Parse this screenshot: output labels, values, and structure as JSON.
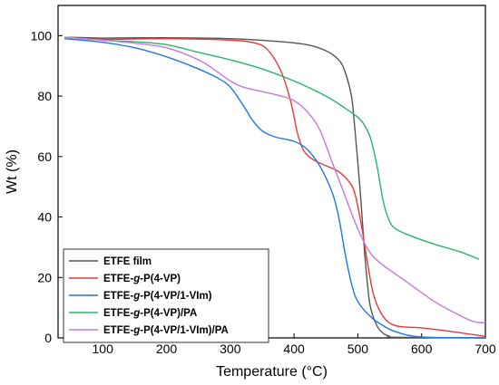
{
  "chart_data": {
    "type": "line",
    "title": "",
    "xlabel": "Temperature (°C)",
    "ylabel": "Wt (%)",
    "xlim": [
      30,
      700
    ],
    "ylim": [
      0,
      110
    ],
    "xticks": [
      100,
      200,
      300,
      400,
      500,
      600,
      700
    ],
    "yticks": [
      0,
      20,
      40,
      60,
      80,
      100
    ],
    "grid": false,
    "legend_position": "bottom-left",
    "series": [
      {
        "name": "ETFE film",
        "legend_parts": [
          {
            "text": "ETFE film",
            "italic": false
          }
        ],
        "color": "#555555",
        "points": [
          [
            40,
            99.5
          ],
          [
            100,
            99.2
          ],
          [
            200,
            99.3
          ],
          [
            300,
            99
          ],
          [
            380,
            98
          ],
          [
            420,
            97
          ],
          [
            450,
            95
          ],
          [
            470,
            92
          ],
          [
            480,
            88
          ],
          [
            490,
            80
          ],
          [
            495,
            70
          ],
          [
            500,
            58
          ],
          [
            505,
            45
          ],
          [
            510,
            30
          ],
          [
            515,
            18
          ],
          [
            520,
            10
          ],
          [
            530,
            4
          ],
          [
            540,
            1.5
          ],
          [
            550,
            0.5
          ],
          [
            560,
            0.2
          ],
          [
            700,
            0
          ]
        ]
      },
      {
        "name": "ETFE-g-P(4-VP)",
        "legend_parts": [
          {
            "text": "ETFE-",
            "italic": false
          },
          {
            "text": "g",
            "italic": true
          },
          {
            "text": "-P(4-VP)",
            "italic": false
          }
        ],
        "color": "#e8383d",
        "points": [
          [
            40,
            99.5
          ],
          [
            100,
            98.8
          ],
          [
            200,
            99
          ],
          [
            300,
            98.5
          ],
          [
            340,
            97.5
          ],
          [
            360,
            95
          ],
          [
            380,
            88
          ],
          [
            395,
            78
          ],
          [
            405,
            68
          ],
          [
            415,
            62
          ],
          [
            430,
            59
          ],
          [
            450,
            57
          ],
          [
            470,
            55
          ],
          [
            485,
            52
          ],
          [
            495,
            48
          ],
          [
            505,
            38
          ],
          [
            515,
            25
          ],
          [
            525,
            14
          ],
          [
            540,
            7
          ],
          [
            560,
            4
          ],
          [
            600,
            3.3
          ],
          [
            650,
            2
          ],
          [
            700,
            0.5
          ]
        ]
      },
      {
        "name": "ETFE-g-P(4-VP/1-VIm)",
        "legend_parts": [
          {
            "text": "ETFE-",
            "italic": false
          },
          {
            "text": "g",
            "italic": true
          },
          {
            "text": "-P(4-VP/1-VIm)",
            "italic": false
          }
        ],
        "color": "#1f77e0",
        "points": [
          [
            40,
            99
          ],
          [
            100,
            97.8
          ],
          [
            150,
            96
          ],
          [
            200,
            93
          ],
          [
            250,
            89
          ],
          [
            280,
            86
          ],
          [
            300,
            83
          ],
          [
            320,
            77
          ],
          [
            335,
            72
          ],
          [
            350,
            68.5
          ],
          [
            370,
            66.5
          ],
          [
            400,
            65
          ],
          [
            420,
            62.5
          ],
          [
            440,
            57
          ],
          [
            460,
            48
          ],
          [
            470,
            40
          ],
          [
            480,
            28
          ],
          [
            490,
            18
          ],
          [
            500,
            12
          ],
          [
            520,
            7
          ],
          [
            540,
            4
          ],
          [
            560,
            2
          ],
          [
            600,
            0.3
          ],
          [
            700,
            0
          ]
        ]
      },
      {
        "name": "ETFE-g-P(4-VP)/PA",
        "legend_parts": [
          {
            "text": "ETFE-",
            "italic": false
          },
          {
            "text": "g",
            "italic": true
          },
          {
            "text": "-P(4-VP)/PA",
            "italic": false
          }
        ],
        "color": "#27b36a",
        "points": [
          [
            40,
            99.5
          ],
          [
            100,
            98.5
          ],
          [
            150,
            98
          ],
          [
            200,
            97
          ],
          [
            250,
            94.5
          ],
          [
            300,
            92
          ],
          [
            350,
            89
          ],
          [
            400,
            85
          ],
          [
            450,
            80
          ],
          [
            480,
            76
          ],
          [
            500,
            73
          ],
          [
            510,
            70.5
          ],
          [
            520,
            66
          ],
          [
            530,
            57
          ],
          [
            540,
            45
          ],
          [
            550,
            38.5
          ],
          [
            560,
            36
          ],
          [
            580,
            34
          ],
          [
            620,
            31
          ],
          [
            660,
            28.5
          ],
          [
            690,
            26
          ]
        ]
      },
      {
        "name": "ETFE-g-P(4-VP/1-VIm)/PA",
        "legend_parts": [
          {
            "text": "ETFE-",
            "italic": false
          },
          {
            "text": "g",
            "italic": true
          },
          {
            "text": "-P(4-VP/1-VIm)/PA",
            "italic": false
          }
        ],
        "color": "#c678dd",
        "points": [
          [
            40,
            99.5
          ],
          [
            100,
            98.5
          ],
          [
            150,
            97.5
          ],
          [
            200,
            96
          ],
          [
            250,
            92
          ],
          [
            280,
            88
          ],
          [
            300,
            85
          ],
          [
            320,
            83
          ],
          [
            350,
            81.5
          ],
          [
            380,
            80
          ],
          [
            400,
            78.5
          ],
          [
            420,
            75
          ],
          [
            440,
            69
          ],
          [
            460,
            58
          ],
          [
            480,
            47
          ],
          [
            500,
            36
          ],
          [
            520,
            28
          ],
          [
            540,
            24
          ],
          [
            560,
            21
          ],
          [
            580,
            18
          ],
          [
            600,
            15
          ],
          [
            620,
            12
          ],
          [
            650,
            8.5
          ],
          [
            680,
            5.5
          ],
          [
            700,
            5
          ]
        ]
      }
    ]
  }
}
